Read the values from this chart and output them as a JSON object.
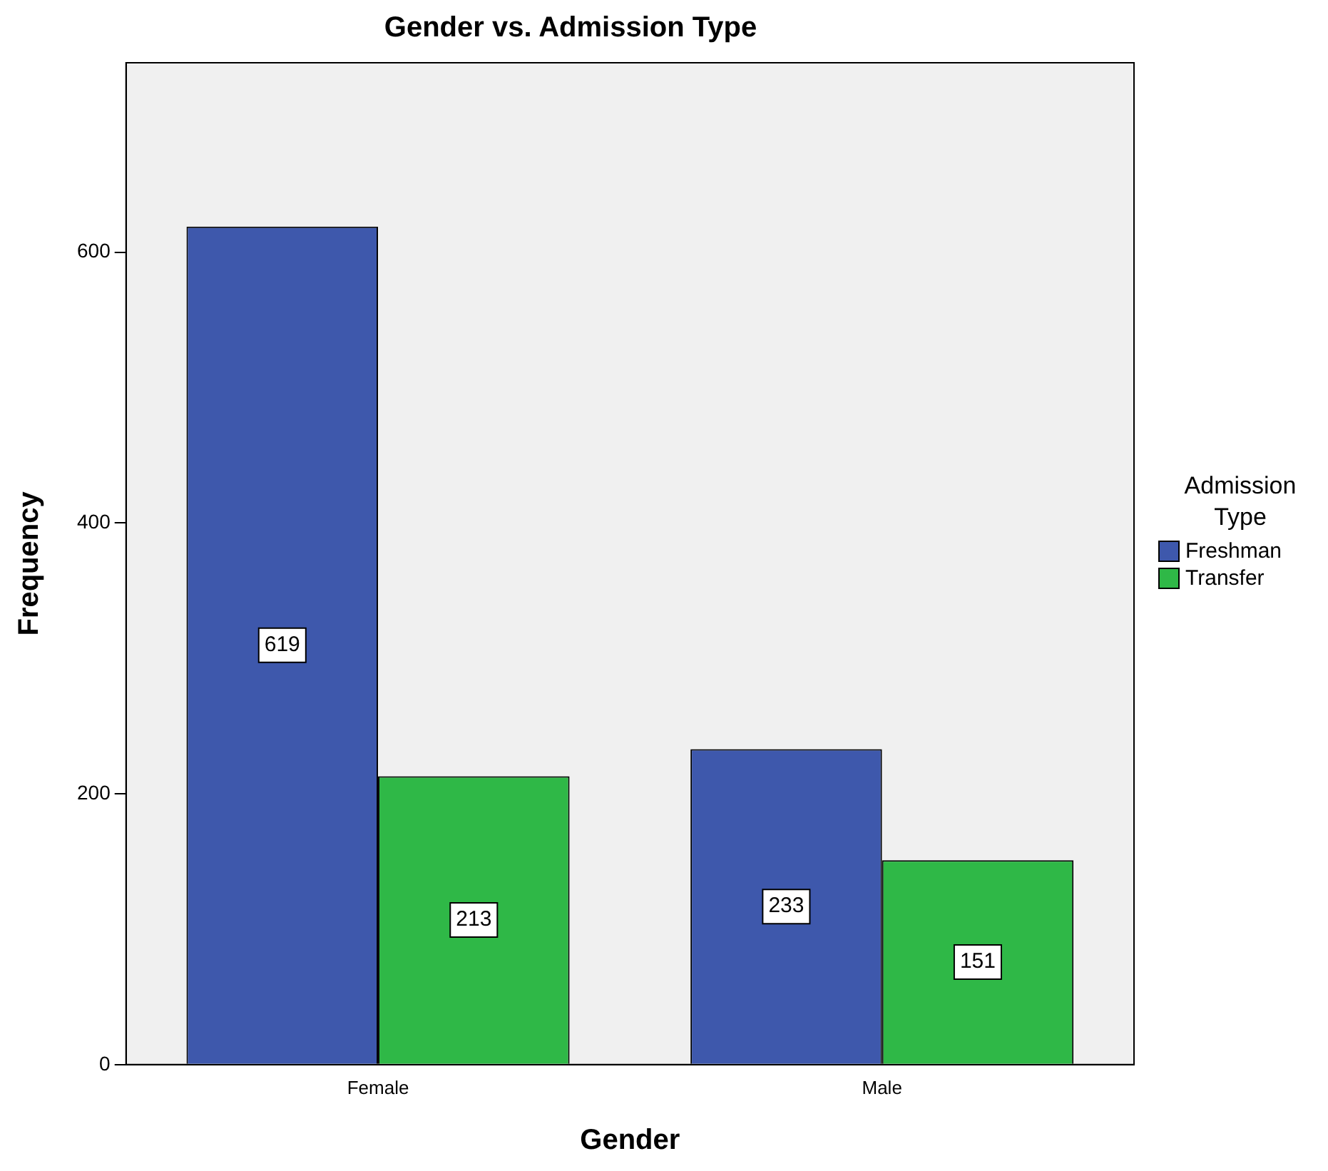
{
  "chart_data": {
    "type": "bar",
    "title": "Gender vs. Admission Type",
    "xlabel": "Gender",
    "ylabel": "Frequency",
    "legend_title": "Admission Type",
    "categories": [
      "Female",
      "Male"
    ],
    "series": [
      {
        "name": "Freshman",
        "color": "#3e58ac",
        "values": [
          619,
          233
        ]
      },
      {
        "name": "Transfer",
        "color": "#2fb847",
        "values": [
          213,
          151
        ]
      }
    ],
    "ylim": [
      0,
      740
    ],
    "yticks": [
      0,
      200,
      400,
      600
    ],
    "grid": false,
    "legend": "right",
    "data_labels": true
  }
}
